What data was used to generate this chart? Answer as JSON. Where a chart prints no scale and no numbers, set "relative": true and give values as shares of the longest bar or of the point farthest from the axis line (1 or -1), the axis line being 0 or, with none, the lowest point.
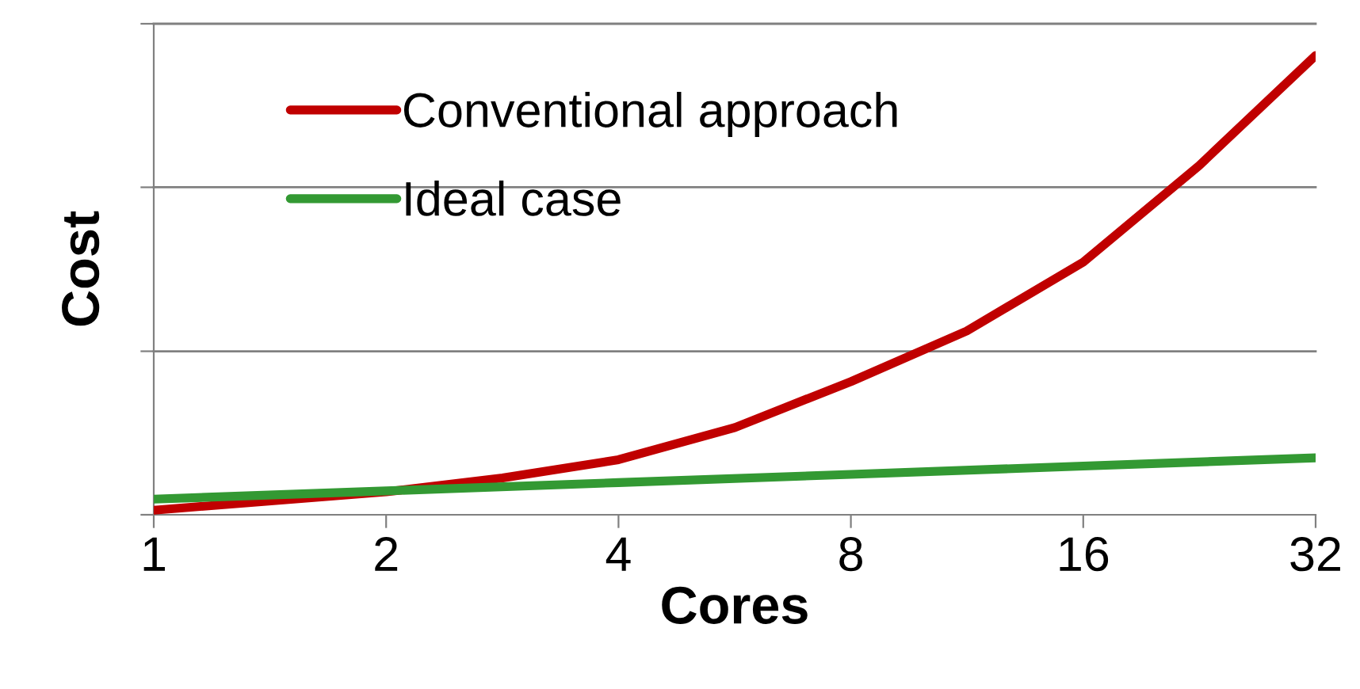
{
  "chart_data": {
    "type": "line",
    "relative": true,
    "xlabel": "Cores",
    "ylabel": "Cost",
    "log": "x",
    "xlim": [
      1,
      32
    ],
    "xticks": [
      1,
      2,
      4,
      8,
      16,
      32
    ],
    "ref_lines": [
      {
        "axis": "y",
        "value": 0.356,
        "color": "#808080"
      },
      {
        "axis": "y",
        "value": 0.713,
        "color": "#808080"
      },
      {
        "axis": "y",
        "value": 1.069,
        "color": "#808080"
      }
    ],
    "legend": "top left",
    "line_style": "solid",
    "marker": "none",
    "series": [
      {
        "name": "Conventional approach",
        "color": "#c00000",
        "x": [
          1,
          2,
          2.83,
          4,
          5.66,
          8,
          11.3,
          16,
          22.6,
          32
        ],
        "values": [
          0.01,
          0.05,
          0.08,
          0.12,
          0.19,
          0.29,
          0.4,
          0.55,
          0.76,
          1
        ]
      },
      {
        "name": "Ideal case",
        "color": "#339933",
        "x": [
          1,
          2,
          4,
          8,
          16,
          32
        ],
        "values": [
          0.034,
          0.052,
          0.07,
          0.088,
          0.106,
          0.124
        ]
      }
    ]
  }
}
